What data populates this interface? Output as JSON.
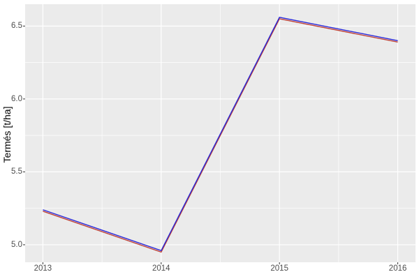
{
  "figure": {
    "background": "#FFFFFF"
  },
  "chart_data": {
    "type": "line",
    "title": "",
    "xlabel": "",
    "ylabel": "Termés [t/ha]",
    "x": [
      2013,
      2014,
      2015,
      2016
    ],
    "series": [
      {
        "name": "red-line",
        "color": "#BE4138",
        "values": [
          5.23,
          4.95,
          6.55,
          6.39
        ]
      },
      {
        "name": "blue-line",
        "color": "#2828D8",
        "values": [
          5.24,
          4.96,
          6.56,
          6.4
        ]
      }
    ],
    "x_tick_labels": [
      "2013",
      "2014",
      "2015",
      "2016"
    ],
    "x_tick_values": [
      2013,
      2014,
      2015,
      2016
    ],
    "x_minor_tick_values": [
      2013.5,
      2014.5,
      2015.5
    ],
    "y_tick_labels": [
      "5.0",
      "5.5",
      "6.0",
      "6.5"
    ],
    "y_tick_values": [
      5.0,
      5.5,
      6.0,
      6.5
    ],
    "y_minor_tick_values": [
      5.25,
      5.75,
      6.25
    ],
    "xlim": [
      2012.85,
      2016.15
    ],
    "ylim": [
      4.88,
      6.65
    ],
    "grid": "major+minor",
    "legend_position": "none",
    "panel_bg": "#EBEBEB",
    "grid_color": "#FFFFFF",
    "tick_mark_color": "#333333",
    "tick_label_color": "#4D4D4D",
    "axis_title_color": "#000000"
  }
}
